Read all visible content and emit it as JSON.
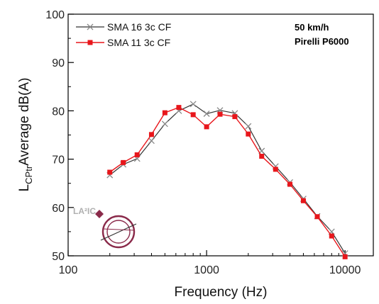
{
  "chart_data": {
    "type": "line",
    "xscale": "log",
    "xlim": [
      100,
      16000
    ],
    "ylim": [
      50,
      100
    ],
    "xlabel": "Frequency (Hz)",
    "ylabel_main": "L",
    "ylabel_sub": "CPtr",
    "ylabel_rest": "Average dB(A)",
    "xticks": [
      100,
      1000,
      10000
    ],
    "xtick_labels": [
      "100",
      "1000",
      "10000"
    ],
    "yticks": [
      50,
      60,
      70,
      80,
      90,
      100
    ],
    "ytick_labels": [
      "50",
      "60",
      "70",
      "80",
      "90",
      "100"
    ],
    "grid": false,
    "legend_position": "top-left",
    "annotations": [
      "50 km/h",
      "Pirelli P6000"
    ],
    "logo": {
      "text": "LA²IC"
    },
    "series": [
      {
        "name": "SMA 16 3c CF",
        "color": "#333333",
        "marker": "x",
        "x": [
          200,
          250,
          315,
          400,
          500,
          630,
          800,
          1000,
          1250,
          1600,
          2000,
          2500,
          3150,
          4000,
          5000,
          6300,
          8000,
          10000
        ],
        "y": [
          66.7,
          68.9,
          70.1,
          73.8,
          77.3,
          80.0,
          81.4,
          79.4,
          80.1,
          79.5,
          76.8,
          71.7,
          68.5,
          65.2,
          61.8,
          58.2,
          55.0,
          50.5
        ]
      },
      {
        "name": "SMA 11 3c CF",
        "color": "#e8161b",
        "marker": "square",
        "x": [
          200,
          250,
          315,
          400,
          500,
          630,
          800,
          1000,
          1250,
          1600,
          2000,
          2500,
          3150,
          4000,
          5000,
          6300,
          8000,
          10000
        ],
        "y": [
          67.3,
          69.3,
          70.9,
          75.1,
          79.6,
          80.7,
          79.2,
          76.7,
          79.3,
          78.8,
          75.2,
          70.6,
          67.9,
          64.8,
          61.4,
          58.1,
          54.1,
          49.8
        ]
      }
    ]
  }
}
